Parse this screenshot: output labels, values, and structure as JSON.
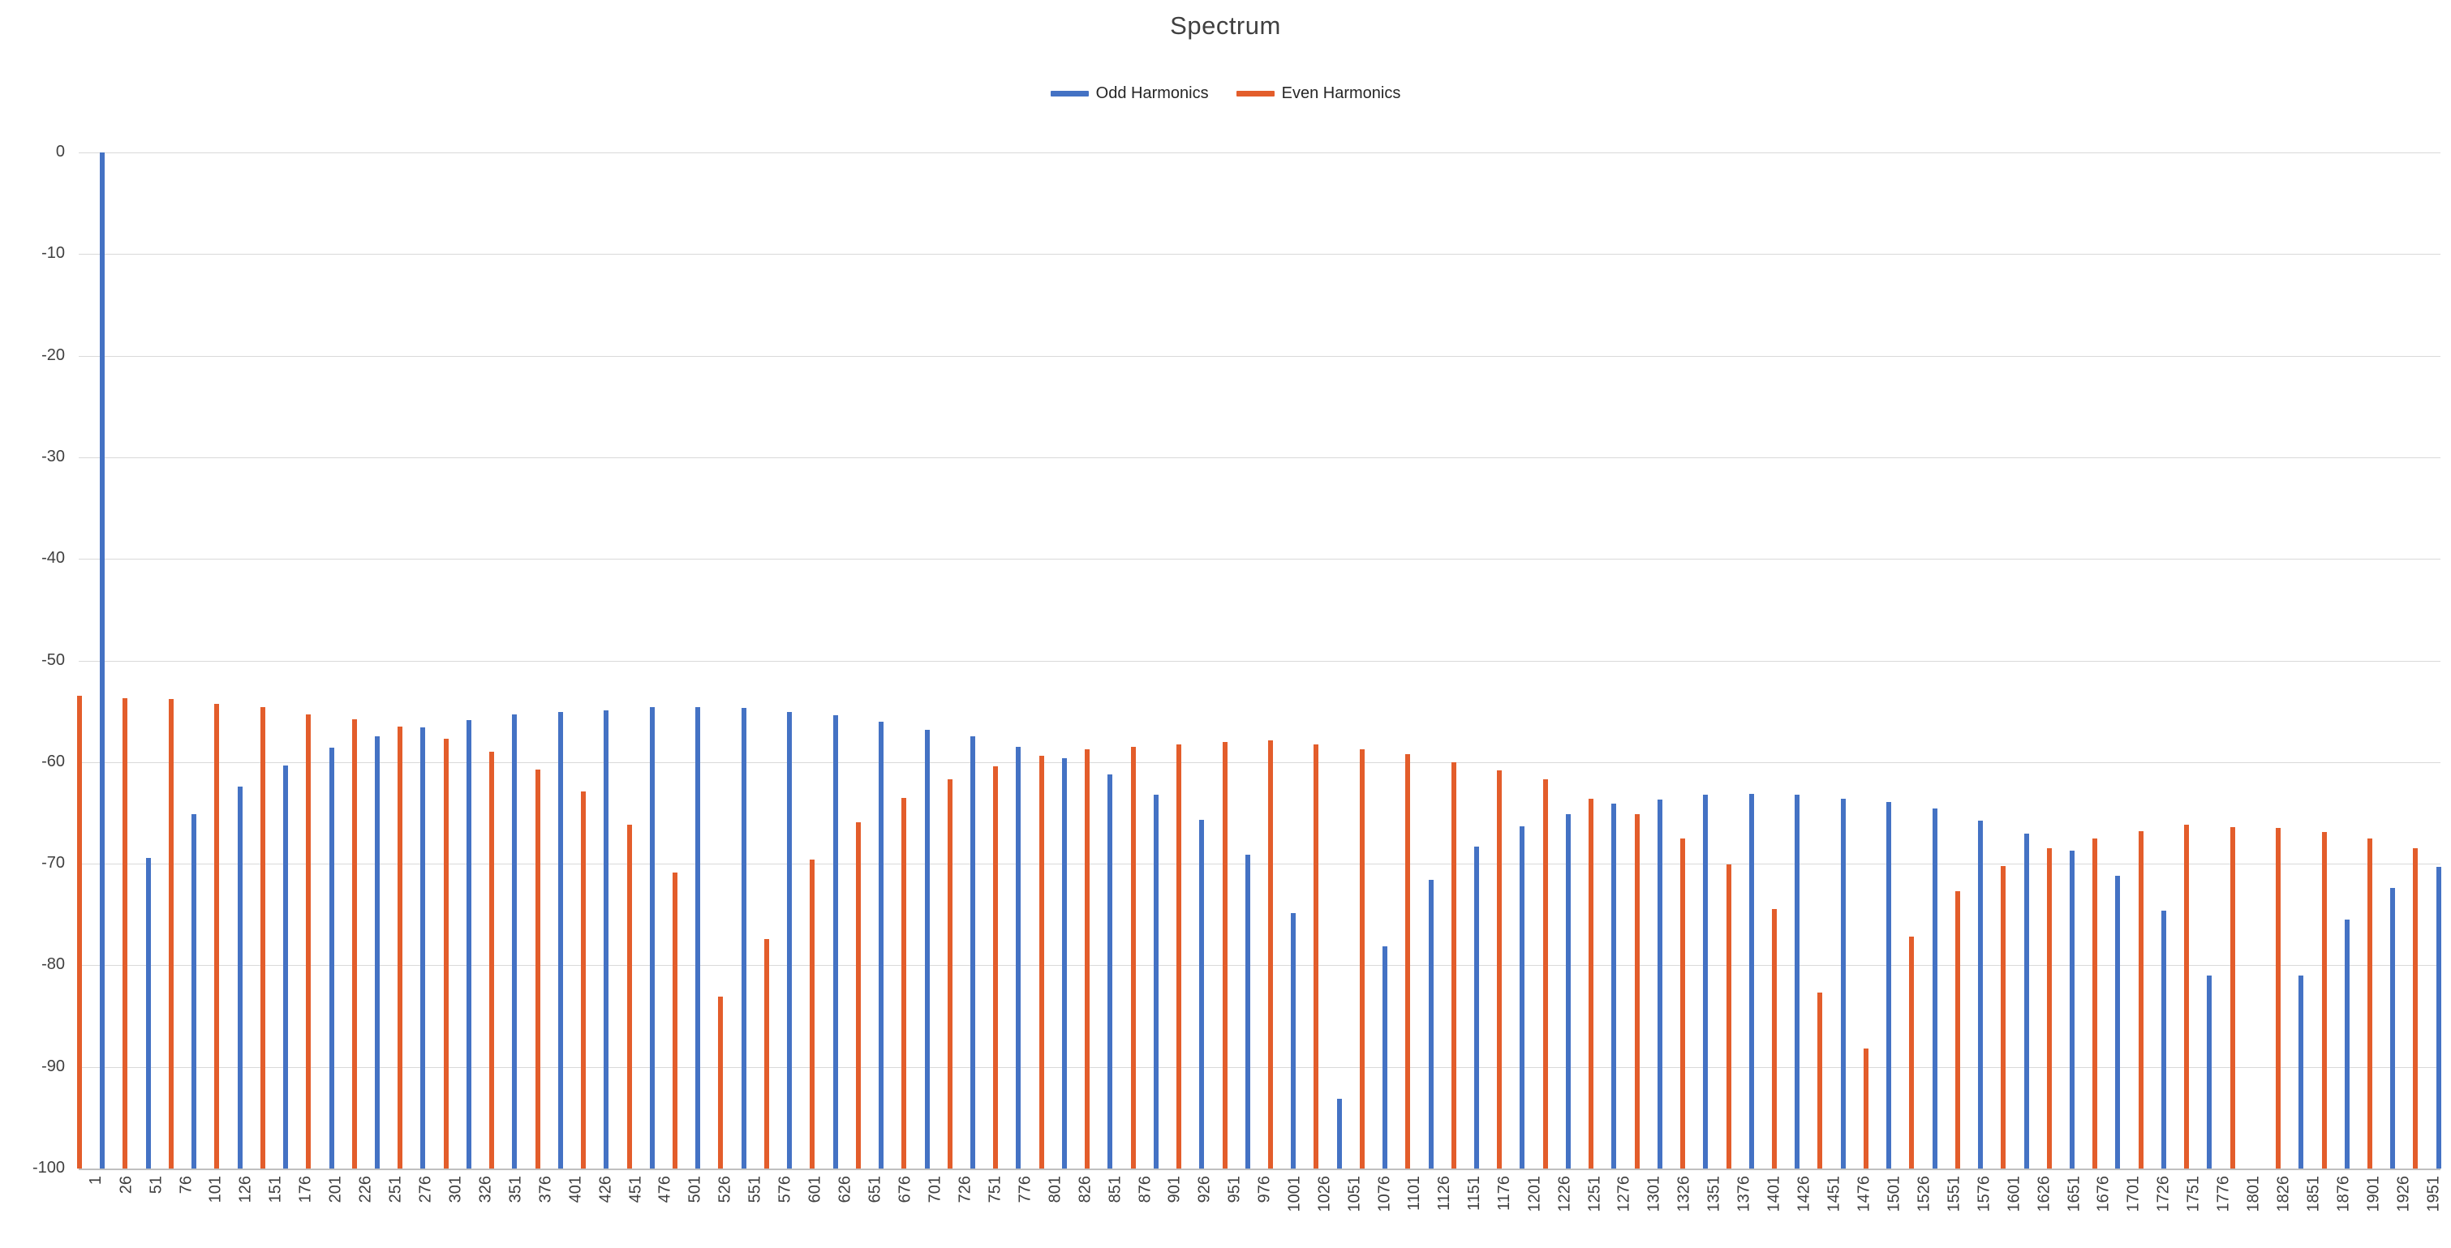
{
  "chart_data": {
    "type": "bar",
    "title": "Spectrum",
    "xlabel": "",
    "ylabel": "",
    "ylim": [
      -100,
      0
    ],
    "grid": "horizontal",
    "legend_position": "top-center",
    "legend": [
      {
        "label": "Odd Harmonics",
        "series": "odd",
        "color": "#4472C4"
      },
      {
        "label": "Even Harmonics",
        "series": "even",
        "color": "#E35D2B"
      }
    ],
    "y_tick_labels": [
      "0",
      "-10",
      "-20",
      "-30",
      "-40",
      "-50",
      "-60",
      "-70",
      "-80",
      "-90",
      "-100"
    ],
    "x_tick_labels": [
      "1",
      "26",
      "51",
      "76",
      "101",
      "126",
      "151",
      "176",
      "201",
      "226",
      "251",
      "276",
      "301",
      "326",
      "351",
      "376",
      "401",
      "426",
      "451",
      "476",
      "501",
      "526",
      "551",
      "576",
      "601",
      "626",
      "651",
      "676",
      "701",
      "726",
      "751",
      "776",
      "801",
      "826",
      "851",
      "876",
      "901",
      "926",
      "951",
      "976",
      "1001",
      "1026",
      "1051",
      "1076",
      "1101",
      "1126",
      "1151",
      "1176",
      "1201",
      "1226",
      "1251",
      "1276",
      "1301",
      "1326",
      "1351",
      "1376",
      "1401",
      "1426",
      "1451",
      "1476",
      "1501",
      "1526",
      "1551",
      "1576",
      "1601",
      "1626",
      "1651",
      "1676",
      "1701",
      "1726",
      "1751",
      "1776",
      "1801",
      "1826",
      "1851",
      "1876",
      "1901",
      "1926",
      "1951"
    ],
    "bar_series_rule": "104 bars evenly spaced across the plot; even indices (0,2,4,...) are Even Harmonics (orange), odd indices are Odd Harmonics (blue); null means no bar drawn",
    "values": [
      -53.5,
      0,
      -53.7,
      -69.4,
      -53.8,
      -65.1,
      -54.3,
      -62.4,
      -54.6,
      -60.3,
      -55.3,
      -58.6,
      -55.8,
      -57.5,
      -56.5,
      -56.6,
      -57.7,
      -55.9,
      -59.0,
      -55.3,
      -60.7,
      -55.1,
      -62.9,
      -54.9,
      -66.2,
      -54.6,
      -70.9,
      -54.6,
      -83.1,
      -54.7,
      -77.4,
      -55.1,
      -69.6,
      -55.4,
      -65.9,
      -56.0,
      -63.5,
      -56.8,
      -61.7,
      -57.5,
      -60.4,
      -58.5,
      -59.4,
      -59.6,
      -58.7,
      -61.2,
      -58.5,
      -63.2,
      -58.3,
      -65.7,
      -58.0,
      -69.1,
      -57.9,
      -74.9,
      -58.3,
      -93.1,
      -58.7,
      -78.1,
      -59.2,
      -71.6,
      -60.0,
      -68.3,
      -60.8,
      -66.3,
      -61.7,
      -65.1,
      -63.6,
      -64.1,
      -65.1,
      -63.7,
      -67.5,
      -63.2,
      -70.1,
      -63.1,
      -74.5,
      -63.2,
      -82.7,
      -63.6,
      -88.2,
      -63.9,
      -77.2,
      -64.6,
      -72.7,
      -65.8,
      -70.2,
      -67.0,
      -68.5,
      -68.7,
      -67.5,
      -71.2,
      -66.8,
      -74.6,
      -66.2,
      -81.0,
      -66.4,
      null,
      -66.5,
      -81.0,
      -66.9,
      -75.5,
      -67.5,
      -72.4,
      -68.5,
      -70.3
    ]
  },
  "colors": {
    "odd_bar": "#4472C4",
    "even_bar": "#E35D2B",
    "gridline": "#D9D9D9",
    "axis_line": "#BFBFBF",
    "tick_text": "#404040",
    "title_text": "#404040",
    "legend_text": "#262626",
    "background": "#FFFFFF"
  }
}
